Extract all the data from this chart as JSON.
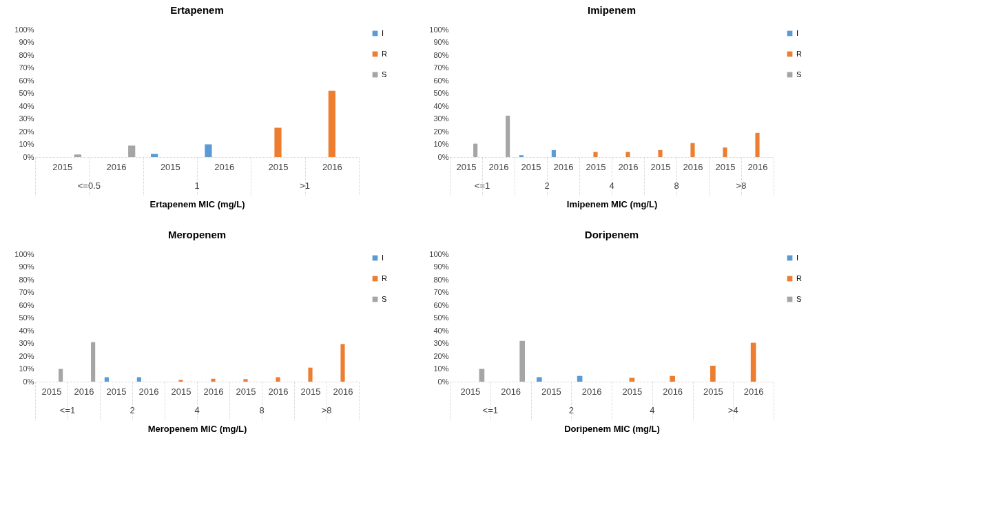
{
  "chart_data": [
    {
      "type": "bar",
      "title": "Ertapenem",
      "xlabel": "Ertapenem MIC (mg/L)",
      "categories": [
        "2015",
        "2016",
        "2015",
        "2016",
        "2015",
        "2016"
      ],
      "annotations": [
        "<=0.5",
        "1",
        ">1"
      ],
      "series": [
        {
          "name": "I",
          "color": "#5b9bd5",
          "values": [
            null,
            null,
            2.5,
            10,
            null,
            null
          ]
        },
        {
          "name": "R",
          "color": "#ed7d31",
          "values": [
            null,
            null,
            null,
            null,
            23,
            52
          ]
        },
        {
          "name": "S",
          "color": "#a5a5a5",
          "values": [
            2,
            9,
            null,
            null,
            null,
            null
          ]
        }
      ],
      "ylim": [
        0,
        100
      ],
      "yticks": [
        {
          "value": 0,
          "label": "0%"
        },
        {
          "value": 10,
          "label": "10%"
        },
        {
          "value": 20,
          "label": "20%"
        },
        {
          "value": 30,
          "label": "30%"
        },
        {
          "value": 40,
          "label": "40%"
        },
        {
          "value": 50,
          "label": "50%"
        },
        {
          "value": 60,
          "label": "60%"
        },
        {
          "value": 70,
          "label": "70%"
        },
        {
          "value": 80,
          "label": "80%"
        },
        {
          "value": 90,
          "label": "90%"
        },
        {
          "value": 100,
          "label": "100%"
        }
      ],
      "legend": "right"
    },
    {
      "type": "bar",
      "title": "Imipenem",
      "xlabel": "Imipenem MIC (mg/L)",
      "categories": [
        "2015",
        "2016",
        "2015",
        "2016",
        "2015",
        "2016",
        "2015",
        "2016",
        "2015",
        "2016"
      ],
      "annotations": [
        "<=1",
        "2",
        "4",
        "8",
        ">8"
      ],
      "series": [
        {
          "name": "I",
          "color": "#5b9bd5",
          "values": [
            null,
            null,
            1.5,
            5.5,
            null,
            null,
            null,
            null,
            null,
            null
          ]
        },
        {
          "name": "R",
          "color": "#ed7d31",
          "values": [
            null,
            null,
            null,
            null,
            4,
            4,
            5.5,
            11,
            7.5,
            19
          ]
        },
        {
          "name": "S",
          "color": "#a5a5a5",
          "values": [
            10.5,
            32.5,
            null,
            null,
            null,
            null,
            null,
            null,
            null,
            null
          ]
        }
      ],
      "ylim": [
        0,
        100
      ],
      "yticks": [
        {
          "value": 0,
          "label": "0%"
        },
        {
          "value": 10,
          "label": "10%"
        },
        {
          "value": 20,
          "label": "20%"
        },
        {
          "value": 30,
          "label": "30%"
        },
        {
          "value": 40,
          "label": "40%"
        },
        {
          "value": 50,
          "label": "50%"
        },
        {
          "value": 60,
          "label": "60%"
        },
        {
          "value": 70,
          "label": "70%"
        },
        {
          "value": 80,
          "label": "80%"
        },
        {
          "value": 90,
          "label": "90%"
        },
        {
          "value": 100,
          "label": "100%"
        }
      ],
      "legend": "right"
    },
    {
      "type": "bar",
      "title": "Meropenem",
      "xlabel": "Meropenem MIC (mg/L)",
      "categories": [
        "2015",
        "2016",
        "2015",
        "2016",
        "2015",
        "2016",
        "2015",
        "2016",
        "2015",
        "2016"
      ],
      "annotations": [
        "<=1",
        "2",
        "4",
        "8",
        ">8"
      ],
      "series": [
        {
          "name": "I",
          "color": "#5b9bd5",
          "values": [
            null,
            null,
            3.5,
            3.5,
            null,
            null,
            null,
            null,
            null,
            null
          ]
        },
        {
          "name": "R",
          "color": "#ed7d31",
          "values": [
            null,
            null,
            null,
            null,
            1.3,
            2.3,
            2,
            3.5,
            11,
            29.5
          ]
        },
        {
          "name": "S",
          "color": "#a5a5a5",
          "values": [
            10,
            31,
            null,
            null,
            null,
            null,
            null,
            null,
            null,
            null
          ]
        }
      ],
      "ylim": [
        0,
        100
      ],
      "yticks": [
        {
          "value": 0,
          "label": "0%"
        },
        {
          "value": 10,
          "label": "10%"
        },
        {
          "value": 20,
          "label": "20%"
        },
        {
          "value": 30,
          "label": "30%"
        },
        {
          "value": 40,
          "label": "40%"
        },
        {
          "value": 50,
          "label": "50%"
        },
        {
          "value": 60,
          "label": "60%"
        },
        {
          "value": 70,
          "label": "70%"
        },
        {
          "value": 80,
          "label": "80%"
        },
        {
          "value": 90,
          "label": "90%"
        },
        {
          "value": 100,
          "label": "100%"
        }
      ],
      "legend": "right"
    },
    {
      "type": "bar",
      "title": "Doripenem",
      "xlabel": "Doripenem MIC (mg/L)",
      "categories": [
        "2015",
        "2016",
        "2015",
        "2016",
        "2015",
        "2016",
        "2015",
        "2016"
      ],
      "annotations": [
        "<=1",
        "2",
        "4",
        ">4"
      ],
      "series": [
        {
          "name": "I",
          "color": "#5b9bd5",
          "values": [
            null,
            null,
            3.5,
            4.5,
            null,
            null,
            null,
            null
          ]
        },
        {
          "name": "R",
          "color": "#ed7d31",
          "values": [
            null,
            null,
            null,
            null,
            3,
            4.5,
            12.5,
            30.5
          ]
        },
        {
          "name": "S",
          "color": "#a5a5a5",
          "values": [
            10,
            32,
            null,
            null,
            null,
            null,
            null,
            null
          ]
        }
      ],
      "ylim": [
        0,
        100
      ],
      "yticks": [
        {
          "value": 0,
          "label": "0%"
        },
        {
          "value": 10,
          "label": "10%"
        },
        {
          "value": 20,
          "label": "20%"
        },
        {
          "value": 30,
          "label": "30%"
        },
        {
          "value": 40,
          "label": "40%"
        },
        {
          "value": 50,
          "label": "50%"
        },
        {
          "value": 60,
          "label": "60%"
        },
        {
          "value": 70,
          "label": "70%"
        },
        {
          "value": 80,
          "label": "80%"
        },
        {
          "value": 90,
          "label": "90%"
        },
        {
          "value": 100,
          "label": "100%"
        }
      ],
      "legend": "right"
    }
  ]
}
